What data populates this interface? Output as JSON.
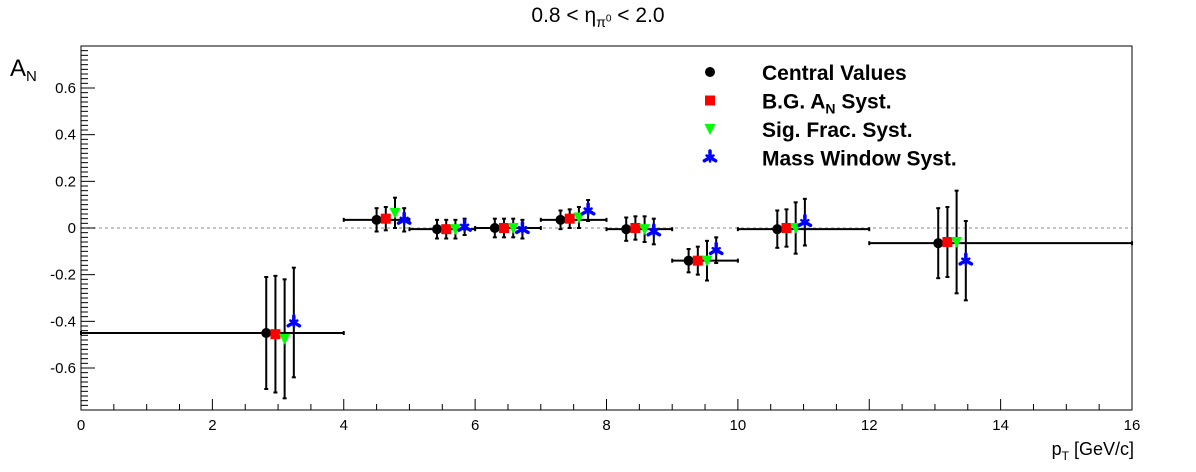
{
  "chart_data": {
    "type": "scatter",
    "title_main": "0.8 < η",
    "title_sub": "π",
    "title_supsub": "0",
    "title_rest": " < 2.0",
    "ylabel_main": "A",
    "ylabel_sub": "N",
    "xlabel_main": "p",
    "xlabel_sub": "T",
    "xlabel_rest": " [GeV/c]",
    "xlim": [
      0,
      16
    ],
    "ylim": [
      -0.78,
      0.78
    ],
    "x_ticks": [
      "0",
      "2",
      "4",
      "6",
      "8",
      "10",
      "12",
      "14",
      "16"
    ],
    "y_ticks": [
      "-0.6",
      "-0.4",
      "-0.2",
      "0",
      "0.2",
      "0.4",
      "0.6"
    ],
    "x_tick_values": [
      0,
      2,
      4,
      6,
      8,
      10,
      12,
      14,
      16
    ],
    "y_tick_values": [
      -0.6,
      -0.4,
      -0.2,
      0,
      0.2,
      0.4,
      0.6
    ],
    "reference_line": 0,
    "legend_position": "top-right",
    "series": [
      {
        "name": "Central Values",
        "marker": "circle",
        "color": "#000000",
        "points": [
          {
            "x": 2.82,
            "y": -0.45,
            "yerr": 0.24,
            "xlo": 0.0,
            "xhi": 4.0
          },
          {
            "x": 4.5,
            "y": 0.035,
            "yerr": 0.05,
            "xlo": 4.0,
            "xhi": 5.0
          },
          {
            "x": 5.42,
            "y": -0.005,
            "yerr": 0.04,
            "xlo": 5.0,
            "xhi": 6.0
          },
          {
            "x": 6.3,
            "y": 0.0,
            "yerr": 0.04,
            "xlo": 6.0,
            "xhi": 7.0
          },
          {
            "x": 7.3,
            "y": 0.035,
            "yerr": 0.04,
            "xlo": 7.0,
            "xhi": 8.0
          },
          {
            "x": 8.3,
            "y": -0.005,
            "yerr": 0.05,
            "xlo": 8.0,
            "xhi": 9.0
          },
          {
            "x": 9.25,
            "y": -0.14,
            "yerr": 0.05,
            "xlo": 9.0,
            "xhi": 10.0
          },
          {
            "x": 10.6,
            "y": -0.005,
            "yerr": 0.08,
            "xlo": 10.0,
            "xhi": 12.0
          },
          {
            "x": 13.05,
            "y": -0.065,
            "yerr": 0.15,
            "xlo": 12.0,
            "xhi": 16.0
          }
        ]
      },
      {
        "name": "B.G. A_N Syst.",
        "legend_main": "B.G. A",
        "legend_sub": "N",
        "legend_rest": " Syst.",
        "marker": "square",
        "color": "#ff0000",
        "points": [
          {
            "x": 2.96,
            "y": -0.455,
            "yerr": 0.25
          },
          {
            "x": 4.64,
            "y": 0.04,
            "yerr": 0.05
          },
          {
            "x": 5.56,
            "y": -0.005,
            "yerr": 0.04
          },
          {
            "x": 6.44,
            "y": 0.0,
            "yerr": 0.04
          },
          {
            "x": 7.44,
            "y": 0.04,
            "yerr": 0.04
          },
          {
            "x": 8.44,
            "y": 0.0,
            "yerr": 0.05
          },
          {
            "x": 9.39,
            "y": -0.14,
            "yerr": 0.06
          },
          {
            "x": 10.74,
            "y": 0.0,
            "yerr": 0.08
          },
          {
            "x": 13.19,
            "y": -0.06,
            "yerr": 0.15
          }
        ]
      },
      {
        "name": "Sig. Frac. Syst.",
        "marker": "triangle-down",
        "color": "#00ff00",
        "points": [
          {
            "x": 3.1,
            "y": -0.475,
            "yerr": 0.255
          },
          {
            "x": 4.78,
            "y": 0.065,
            "yerr": 0.065
          },
          {
            "x": 5.7,
            "y": -0.005,
            "yerr": 0.04
          },
          {
            "x": 6.58,
            "y": 0.0,
            "yerr": 0.04
          },
          {
            "x": 7.58,
            "y": 0.045,
            "yerr": 0.045
          },
          {
            "x": 8.58,
            "y": -0.005,
            "yerr": 0.055
          },
          {
            "x": 9.53,
            "y": -0.14,
            "yerr": 0.085
          },
          {
            "x": 10.88,
            "y": 0.0,
            "yerr": 0.11
          },
          {
            "x": 13.33,
            "y": -0.06,
            "yerr": 0.22
          }
        ]
      },
      {
        "name": "Mass Window Syst.",
        "marker": "star",
        "color": "#0000ff",
        "points": [
          {
            "x": 3.24,
            "y": -0.405,
            "yerr": 0.235
          },
          {
            "x": 4.92,
            "y": 0.035,
            "yerr": 0.05
          },
          {
            "x": 5.84,
            "y": 0.005,
            "yerr": 0.035
          },
          {
            "x": 6.72,
            "y": -0.005,
            "yerr": 0.04
          },
          {
            "x": 7.72,
            "y": 0.075,
            "yerr": 0.045
          },
          {
            "x": 8.72,
            "y": -0.015,
            "yerr": 0.055
          },
          {
            "x": 9.67,
            "y": -0.095,
            "yerr": 0.055
          },
          {
            "x": 11.02,
            "y": 0.025,
            "yerr": 0.1
          },
          {
            "x": 13.47,
            "y": -0.14,
            "yerr": 0.17
          }
        ]
      }
    ]
  }
}
